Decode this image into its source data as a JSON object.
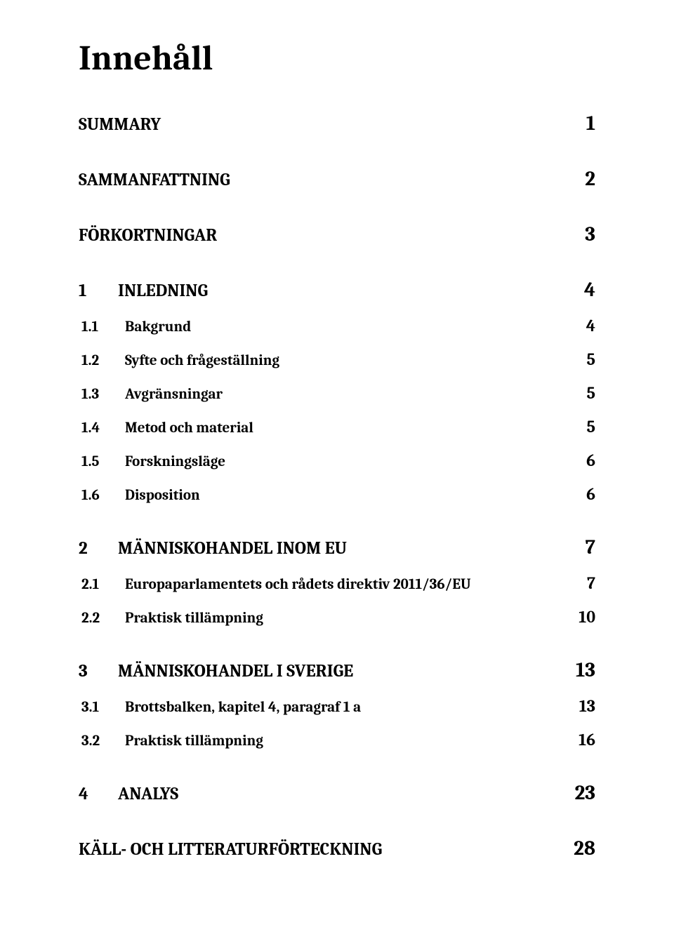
{
  "title": "Innehåll",
  "entries": [
    {
      "level": 1,
      "num": "",
      "label": "SUMMARY",
      "page": "1",
      "first": true
    },
    {
      "level": 1,
      "num": "",
      "label": "SAMMANFATTNING",
      "page": "2"
    },
    {
      "level": 1,
      "num": "",
      "label": "FÖRKORTNINGAR",
      "page": "3"
    },
    {
      "level": 1,
      "num": "1",
      "label": "INLEDNING",
      "page": "4"
    },
    {
      "level": 2,
      "num": "1.1",
      "label": "Bakgrund",
      "page": "4"
    },
    {
      "level": 2,
      "num": "1.2",
      "label": "Syfte och frågeställning",
      "page": "5"
    },
    {
      "level": 2,
      "num": "1.3",
      "label": "Avgränsningar",
      "page": "5"
    },
    {
      "level": 2,
      "num": "1.4",
      "label": "Metod och material",
      "page": "5"
    },
    {
      "level": 2,
      "num": "1.5",
      "label": "Forskningsläge",
      "page": "6"
    },
    {
      "level": 2,
      "num": "1.6",
      "label": "Disposition",
      "page": "6"
    },
    {
      "level": 1,
      "num": "2",
      "label": "MÄNNISKOHANDEL INOM EU",
      "page": "7"
    },
    {
      "level": 2,
      "num": "2.1",
      "label": "Europaparlamentets och rådets direktiv 2011/36/EU",
      "page": "7"
    },
    {
      "level": 2,
      "num": "2.2",
      "label": "Praktisk tillämpning",
      "page": "10"
    },
    {
      "level": 1,
      "num": "3",
      "label": "MÄNNISKOHANDEL I SVERIGE",
      "page": "13"
    },
    {
      "level": 2,
      "num": "3.1",
      "label": "Brottsbalken, kapitel 4, paragraf 1 a",
      "page": "13"
    },
    {
      "level": 2,
      "num": "3.2",
      "label": "Praktisk tillämpning",
      "page": "16"
    },
    {
      "level": 1,
      "num": "4",
      "label": "ANALYS",
      "page": "23"
    },
    {
      "level": 1,
      "num": "",
      "label": "KÄLL- OCH LITTERATURFÖRTECKNING",
      "page": "28"
    }
  ]
}
